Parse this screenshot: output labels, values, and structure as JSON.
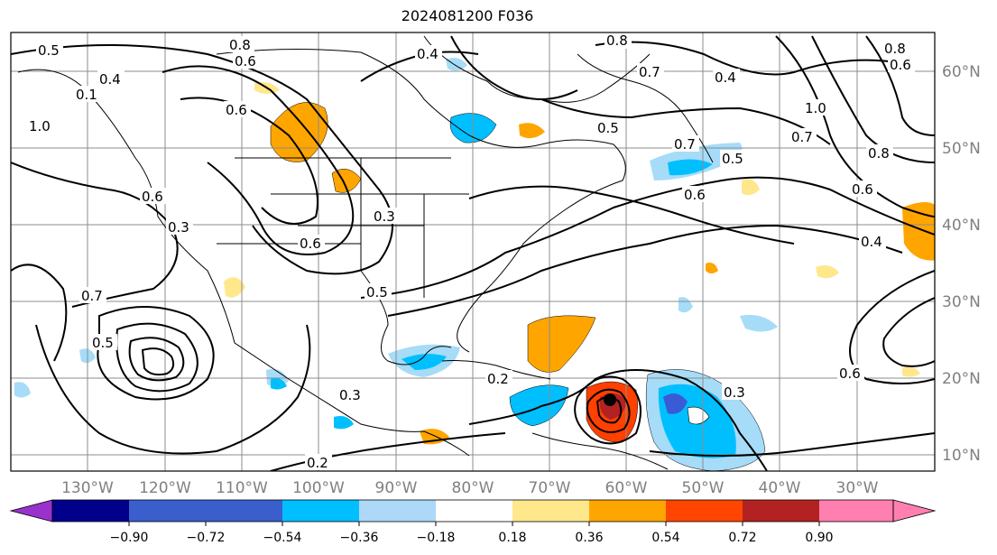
{
  "map": {
    "title": "2024081200 F036",
    "lon_labels": [
      "130°W",
      "120°W",
      "110°W",
      "100°W",
      "90°W",
      "80°W",
      "70°W",
      "60°W",
      "50°W",
      "40°W",
      "30°W"
    ],
    "lat_labels": [
      "60°N",
      "50°N",
      "40°N",
      "30°N",
      "20°N",
      "10°N"
    ],
    "contour_labels": [
      "0.8",
      "0.6",
      "0.4",
      "0.5",
      "1.0",
      "0.6",
      "0.3",
      "0.7",
      "0.5",
      "0.6",
      "0.8",
      "0.7",
      "0.5",
      "0.6",
      "0.7",
      "0.4",
      "0.6",
      "0.5",
      "0.8",
      "0.3",
      "0.2",
      "0.2",
      "0.3",
      "0.4",
      "0.6",
      "0.6",
      "0.1",
      "0.7",
      "0.8",
      "1.0",
      "0.6",
      "0.5",
      "0.4",
      "0.3"
    ],
    "colors": {
      "land_outline": "#000000",
      "grid": "#8c8c8c",
      "neg_strong": "#0000aa",
      "neg_mid": "#3b5bd6",
      "neg_light": "#00bfff",
      "neg_pale": "#a6dcf7",
      "pos_pale": "#ffe88c",
      "pos_mid": "#ffa500",
      "pos_strong": "#ff4000",
      "pos_dark": "#b22222"
    }
  },
  "colorbar": {
    "ticks": [
      "−0.90",
      "−0.72",
      "−0.54",
      "−0.36",
      "−0.18",
      "0.18",
      "0.36",
      "0.54",
      "0.72",
      "0.90"
    ],
    "colors": [
      "#9932cc",
      "#00008b",
      "#3a5fcd",
      "#00bfff",
      "#add8f7",
      "#ffffff",
      "#ffe88c",
      "#ffa500",
      "#ff4500",
      "#b22222",
      "#ff80b0"
    ]
  }
}
